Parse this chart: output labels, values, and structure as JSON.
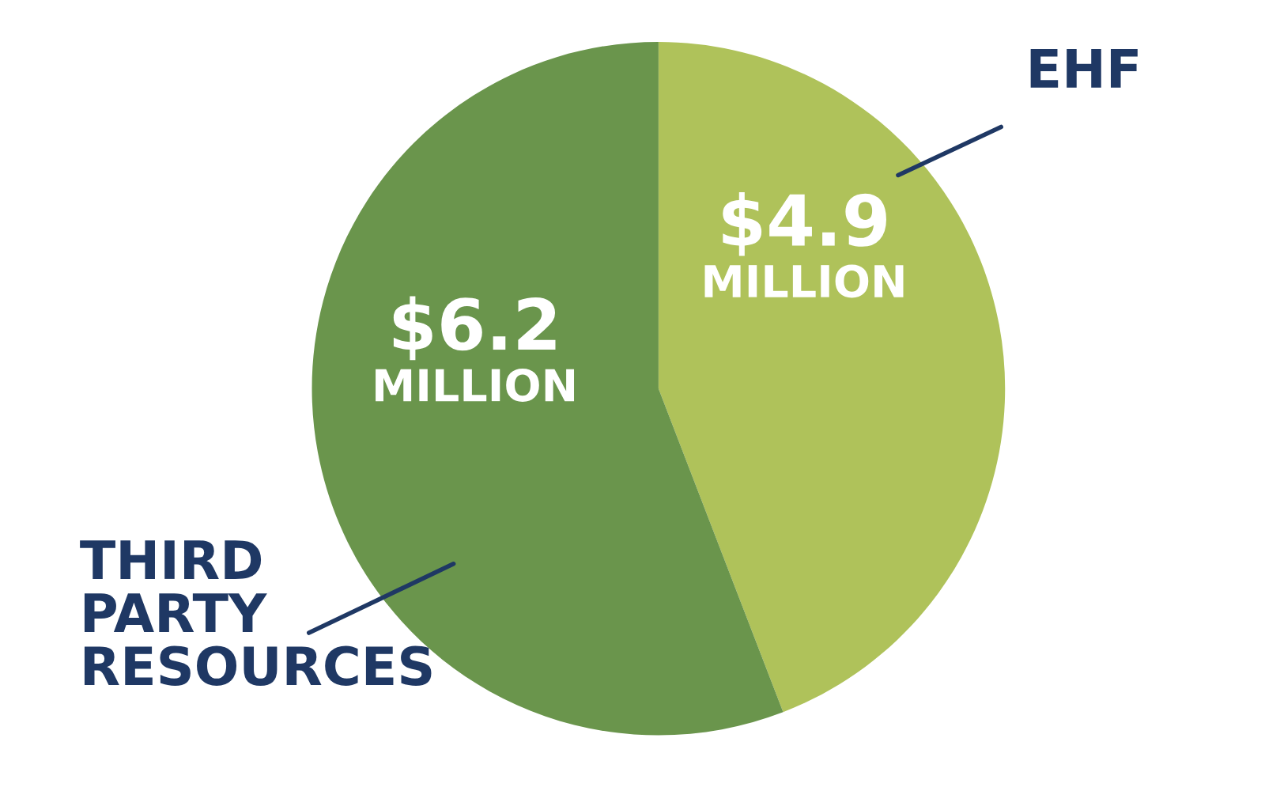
{
  "chart_data": {
    "type": "pie",
    "categories": [
      "EHF",
      "THIRD\nPARTY\nRESOURCES"
    ],
    "values": [
      4.9,
      6.2
    ],
    "colors": [
      "#afc25a",
      "#6a954c"
    ],
    "value_labels": [
      "$4.9\nMILLION",
      "$6.2\nMILLION"
    ],
    "legend": false
  }
}
